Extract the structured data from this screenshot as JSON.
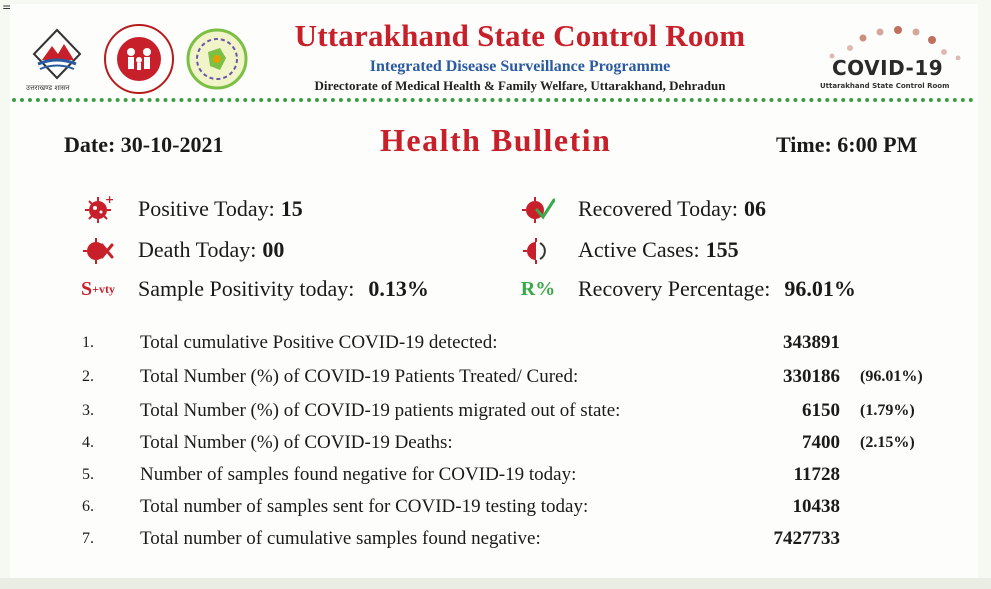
{
  "header": {
    "title": "Uttarakhand State Control Room",
    "subtitle": "Integrated Disease Surveillance Programme",
    "directorate": "Directorate of Medical Health & Family Welfare, Uttarakhand, Dehradun",
    "uk_logo_caption": "उत्तराखण्ड शासन",
    "covid_logo_text": "COVID-19",
    "covid_logo_caption": "Uttarakhand State Control Room"
  },
  "bulletin": {
    "date": "Date: 30-10-2021",
    "title": "Health Bulletin",
    "time": "Time: 6:00 PM"
  },
  "stats": {
    "positive_today": {
      "label": "Positive Today:",
      "value": "15"
    },
    "recovered_today": {
      "label": "Recovered Today:",
      "value": "06"
    },
    "death_today": {
      "label": "Death Today:",
      "value": "00"
    },
    "active_cases": {
      "label": "Active Cases:",
      "value": "155"
    },
    "sample_positivity": {
      "icon_text": "S",
      "icon_sup": "+vty",
      "label": "Sample Positivity today:",
      "value": "0.13%"
    },
    "recovery_percentage": {
      "icon_text": "R%",
      "label": "Recovery Percentage:",
      "value": "96.01%"
    }
  },
  "table": {
    "rows": [
      {
        "num": "1.",
        "desc": "Total cumulative Positive COVID-19 detected:",
        "value": "343891",
        "pct": ""
      },
      {
        "num": "2.",
        "desc": "Total Number (%) of COVID-19 Patients Treated/ Cured:",
        "value": "330186",
        "pct": "(96.01%)"
      },
      {
        "num": "3.",
        "desc": "Total Number (%) of COVID-19 patients migrated out of state:",
        "value": "6150",
        "pct": "(1.79%)"
      },
      {
        "num": "4.",
        "desc": "Total Number (%) of COVID-19 Deaths:",
        "value": "7400",
        "pct": "(2.15%)"
      },
      {
        "num": "5.",
        "desc": "Number of samples found negative for COVID-19 today:",
        "value": "11728",
        "pct": ""
      },
      {
        "num": "6.",
        "desc": "Total number of samples sent for COVID-19 testing today:",
        "value": "10438",
        "pct": ""
      },
      {
        "num": "7.",
        "desc": "Total number of cumulative samples found negative:",
        "value": "7427733",
        "pct": ""
      }
    ]
  },
  "colors": {
    "title_red": "#c8202a",
    "subtitle_blue": "#2b5aa0",
    "rule_green": "#3e9d44",
    "recovery_green": "#3aa84a"
  },
  "icons": {
    "positive": "virus-plus-icon",
    "recovered": "virus-check-icon",
    "death": "virus-cross-icon",
    "active": "virus-partial-icon"
  }
}
